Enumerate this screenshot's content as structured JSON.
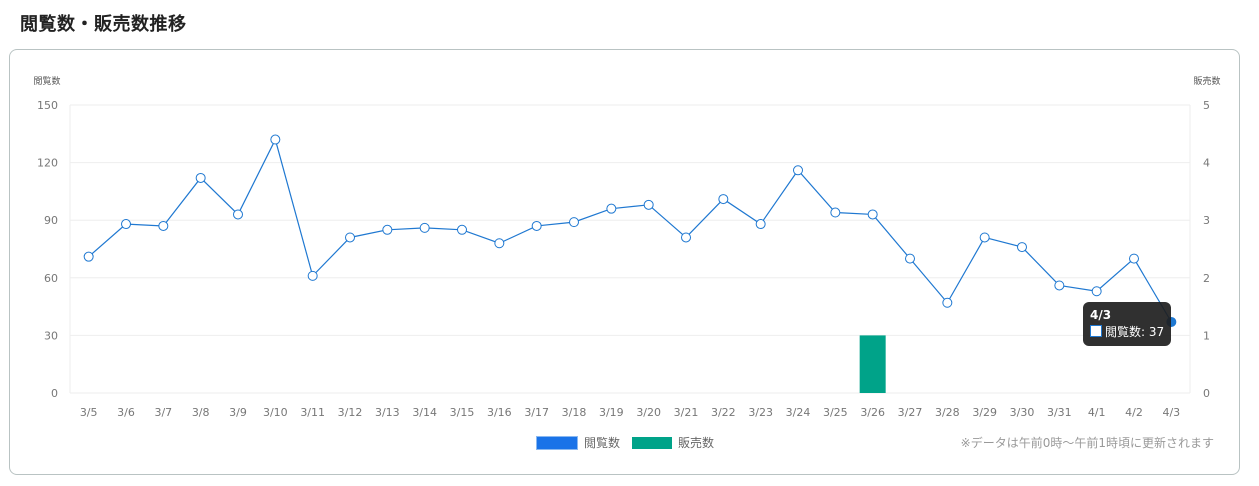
{
  "page": {
    "title": "閲覧数・販売数推移"
  },
  "chart_data": {
    "type": "line",
    "title": "閲覧数・販売数推移",
    "categories": [
      "3/5",
      "3/6",
      "3/7",
      "3/8",
      "3/9",
      "3/10",
      "3/11",
      "3/12",
      "3/13",
      "3/14",
      "3/15",
      "3/16",
      "3/17",
      "3/18",
      "3/19",
      "3/20",
      "3/21",
      "3/22",
      "3/23",
      "3/24",
      "3/25",
      "3/26",
      "3/27",
      "3/28",
      "3/29",
      "3/30",
      "3/31",
      "4/1",
      "4/2",
      "4/3"
    ],
    "series": [
      {
        "name": "閲覧数",
        "type": "line",
        "axis": "left",
        "color": "#1f78d1",
        "values": [
          71,
          88,
          87,
          112,
          93,
          132,
          61,
          81,
          85,
          86,
          85,
          78,
          87,
          89,
          96,
          98,
          81,
          101,
          88,
          116,
          94,
          93,
          70,
          47,
          81,
          76,
          56,
          53,
          70,
          37
        ]
      },
      {
        "name": "販売数",
        "type": "bar",
        "axis": "right",
        "color": "#00a389",
        "values": [
          0,
          0,
          0,
          0,
          0,
          0,
          0,
          0,
          0,
          0,
          0,
          0,
          0,
          0,
          0,
          0,
          0,
          0,
          0,
          0,
          0,
          1,
          0,
          0,
          0,
          0,
          0,
          0,
          0,
          0
        ]
      }
    ],
    "ylabel_left": "閲覧数",
    "ylabel_right": "販売数",
    "yticks_left": [
      0,
      30,
      60,
      90,
      120,
      150
    ],
    "yticks_right": [
      0,
      1,
      2,
      3,
      4,
      5
    ],
    "ylim_left": [
      0,
      150
    ],
    "ylim_right": [
      0,
      5
    ],
    "grid": true,
    "legend_position": "bottom",
    "tooltip": {
      "title": "4/3",
      "label": "閲覧数: 37",
      "index": 29
    }
  },
  "legend": {
    "views": "閲覧数",
    "sales": "販売数"
  },
  "note": "※データは午前0時～午前1時頃に更新されます"
}
